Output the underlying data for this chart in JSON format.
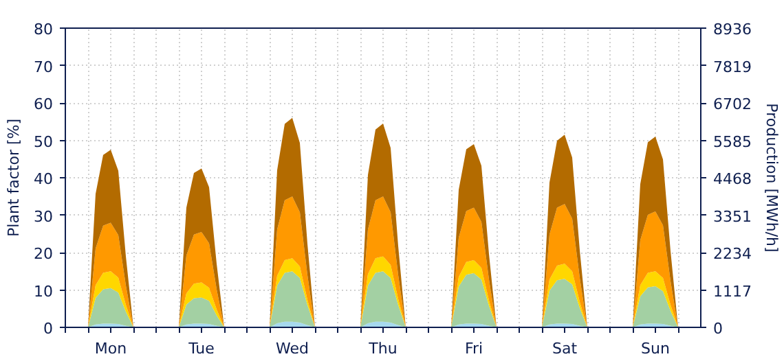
{
  "chart_data": {
    "type": "area",
    "stacked": true,
    "ylabel": "Plant factor [%]",
    "y2label": "Production [MWh/h]",
    "categories": [
      null,
      null,
      null,
      null,
      null,
      null,
      "Mon",
      null,
      null,
      null,
      null,
      null,
      null,
      null,
      null,
      null,
      null,
      null,
      "Tue",
      null,
      null,
      null,
      null,
      null,
      null,
      null,
      null,
      null,
      null,
      null,
      "Wed",
      null,
      null,
      null,
      null,
      null,
      null,
      null,
      null,
      null,
      null,
      null,
      "Thu",
      null,
      null,
      null,
      null,
      null,
      null,
      null,
      null,
      null,
      null,
      null,
      "Fri",
      null,
      null,
      null,
      null,
      null,
      null,
      null,
      null,
      null,
      null,
      null,
      "Sat",
      null,
      null,
      null,
      null,
      null,
      null,
      null,
      null,
      null,
      null,
      null,
      "Sun",
      null,
      null,
      null,
      null,
      null
    ],
    "series": [
      {
        "color": "#a6d9ee",
        "values": [
          0,
          0,
          0,
          0,
          0.8,
          1,
          1,
          0.9,
          0.4,
          0,
          0,
          0,
          0,
          0,
          0,
          0,
          0.8,
          1,
          1,
          0.9,
          0.4,
          0,
          0,
          0,
          0,
          0,
          0,
          0,
          1.1,
          1.5,
          1.5,
          1.3,
          0.6,
          0,
          0,
          0,
          0,
          0,
          0,
          0,
          1.1,
          1.5,
          1.5,
          1.3,
          0.6,
          0,
          0,
          0,
          0,
          0,
          0,
          0,
          0.8,
          1,
          1,
          0.9,
          0.4,
          0,
          0,
          0,
          0,
          0,
          0,
          0,
          0.8,
          1,
          1,
          0.9,
          0.4,
          0,
          0,
          0,
          0,
          0,
          0,
          0,
          0.8,
          1,
          1,
          0.9,
          0.4,
          0,
          0,
          0
        ]
      },
      {
        "color": "#a3d0a3",
        "values": [
          0,
          0,
          0,
          0,
          7.1,
          9.2,
          9.5,
          8.4,
          3.8,
          0,
          0,
          0,
          0,
          0,
          0,
          0,
          5.3,
          6.8,
          7,
          6.2,
          2.8,
          0,
          0,
          0,
          0,
          0,
          0,
          0,
          10.1,
          13.1,
          13.5,
          11.9,
          5.4,
          0,
          0,
          0,
          0,
          0,
          0,
          0,
          10.1,
          13.1,
          13.5,
          11.9,
          5.4,
          0,
          0,
          0,
          0,
          0,
          0,
          0,
          10.1,
          13.1,
          13.5,
          11.9,
          5.4,
          0,
          0,
          0,
          0,
          0,
          0,
          0,
          9,
          11.6,
          12,
          10.6,
          4.8,
          0,
          0,
          0,
          0,
          0,
          0,
          0,
          7.5,
          9.7,
          10,
          8.8,
          4,
          0,
          0,
          0
        ]
      },
      {
        "color": "#ffd700",
        "values": [
          0,
          0,
          0,
          0,
          3.4,
          4.4,
          4.5,
          4,
          1.8,
          0,
          0,
          0,
          0,
          0,
          0,
          0,
          3,
          3.9,
          4,
          3.5,
          1.6,
          0,
          0,
          0,
          0,
          0,
          0,
          0,
          2.6,
          3.4,
          3.5,
          3.1,
          1.4,
          0,
          0,
          0,
          0,
          0,
          0,
          0,
          3,
          3.9,
          4,
          3.5,
          1.6,
          0,
          0,
          0,
          0,
          0,
          0,
          0,
          2.6,
          3.4,
          3.5,
          3.1,
          1.4,
          0,
          0,
          0,
          0,
          0,
          0,
          0,
          3,
          3.9,
          4,
          3.5,
          1.6,
          0,
          0,
          0,
          0,
          0,
          0,
          0,
          3,
          3.9,
          4,
          3.5,
          1.6,
          0,
          0,
          0
        ]
      },
      {
        "color": "#ff9900",
        "values": [
          0,
          0,
          0,
          0,
          9.8,
          12.6,
          13,
          11.4,
          5.2,
          0,
          0,
          0,
          0,
          0,
          0,
          0,
          10.1,
          13.1,
          13.5,
          11.9,
          5.4,
          0,
          0,
          0,
          0,
          0,
          0,
          0,
          12.4,
          16,
          16.5,
          14.5,
          6.6,
          0,
          0,
          0,
          0,
          0,
          0,
          0,
          12,
          15.5,
          16,
          14.1,
          6.4,
          0,
          0,
          0,
          0,
          0,
          0,
          0,
          10.5,
          13.6,
          14,
          12.3,
          5.6,
          0,
          0,
          0,
          0,
          0,
          0,
          0,
          12,
          15.5,
          16,
          14.1,
          6.4,
          0,
          0,
          0,
          0,
          0,
          0,
          0,
          12,
          15.5,
          16,
          14.1,
          6.4,
          0,
          0,
          0
        ]
      },
      {
        "color": "#b36b00",
        "values": [
          0,
          0,
          0,
          0,
          14.6,
          18.9,
          19.5,
          17.2,
          7.8,
          0,
          0,
          0,
          0,
          0,
          0,
          0,
          12.8,
          16.5,
          17,
          15,
          6.8,
          0,
          0,
          0,
          0,
          0,
          0,
          0,
          15.8,
          20.4,
          21,
          18.5,
          8.4,
          0,
          0,
          0,
          0,
          0,
          0,
          0,
          14.6,
          18.9,
          19.5,
          17.2,
          7.8,
          0,
          0,
          0,
          0,
          0,
          0,
          0,
          12.8,
          16.5,
          17,
          15,
          6.8,
          0,
          0,
          0,
          0,
          0,
          0,
          0,
          13.9,
          17.9,
          18.5,
          16.3,
          7.4,
          0,
          0,
          0,
          0,
          0,
          0,
          0,
          15,
          19.4,
          20,
          17.6,
          8,
          0,
          0,
          0
        ]
      }
    ],
    "ylim": [
      0,
      80
    ],
    "yticks": [
      0,
      10,
      20,
      30,
      40,
      50,
      60,
      70,
      80
    ],
    "y2lim": [
      0,
      8936
    ],
    "y2ticks": [
      0,
      1117,
      2234,
      3351,
      4468,
      5585,
      6702,
      7819,
      8936
    ],
    "grid": true
  }
}
